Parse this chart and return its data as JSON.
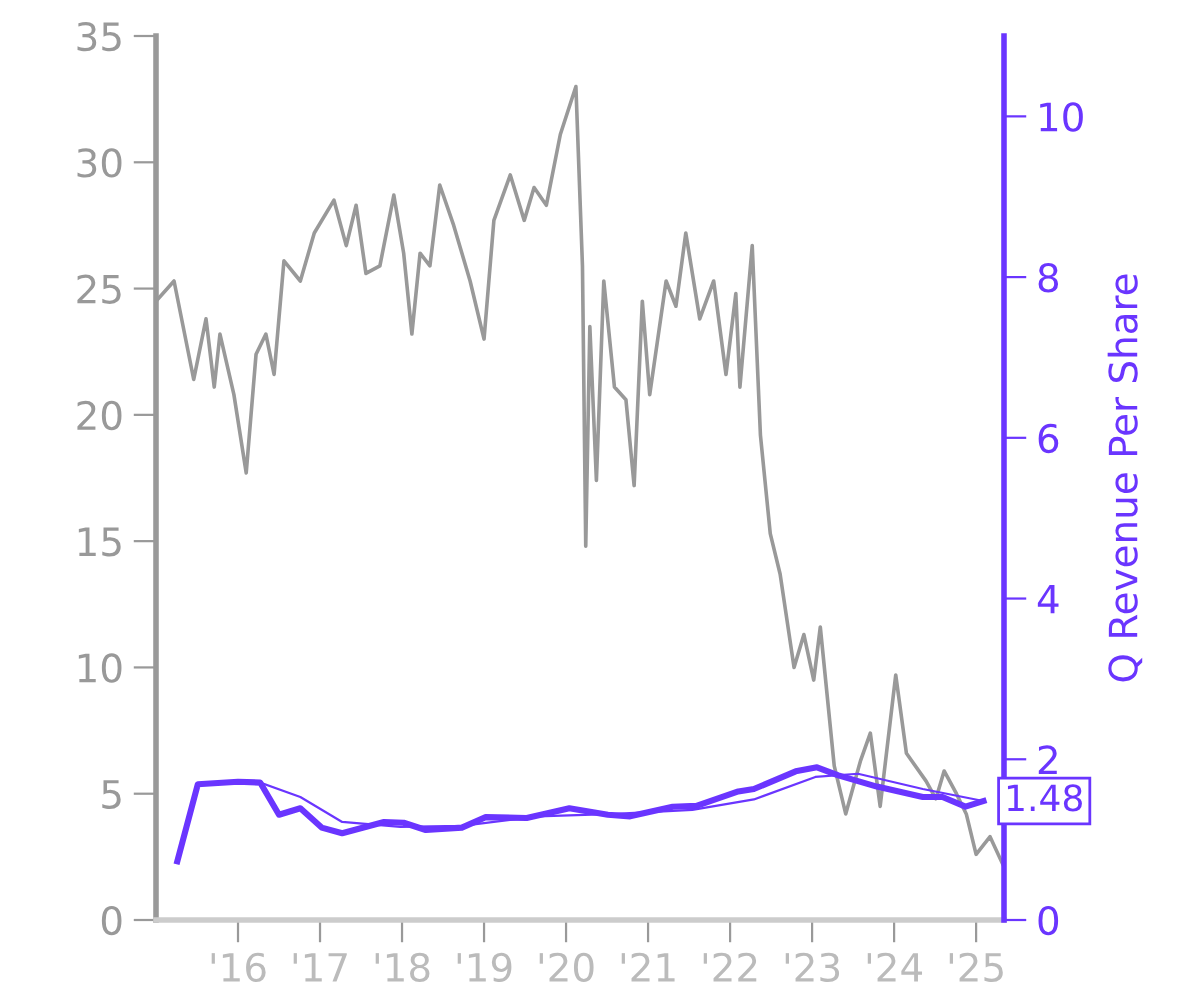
{
  "chart_data": {
    "type": "line",
    "ylabel": null,
    "y2label": "Q Revenue Per Share",
    "xlim": [
      2015.0,
      2025.34
    ],
    "xticks": [
      {
        "value": 2016,
        "label": "'16"
      },
      {
        "value": 2017,
        "label": "'17"
      },
      {
        "value": 2018,
        "label": "'18"
      },
      {
        "value": 2019,
        "label": "'19"
      },
      {
        "value": 2020,
        "label": "'20"
      },
      {
        "value": 2021,
        "label": "'21"
      },
      {
        "value": 2022,
        "label": "'22"
      },
      {
        "value": 2023,
        "label": "'23"
      },
      {
        "value": 2024,
        "label": "'24"
      },
      {
        "value": 2025,
        "label": "'25"
      }
    ],
    "ylim": [
      0,
      35
    ],
    "yticks": [
      0,
      5,
      10,
      15,
      20,
      25,
      30,
      35
    ],
    "y2lim": [
      0,
      11
    ],
    "y2ticks": [
      0,
      2,
      4,
      6,
      8,
      10
    ],
    "grid": false,
    "legend": false,
    "marker": "none",
    "line_style": "solid",
    "series": [
      {
        "color": "#999999",
        "x": [
          2015.0,
          2015.22,
          2015.46,
          2015.61,
          2015.71,
          2015.78,
          2015.95,
          2016.1,
          2016.22,
          2016.34,
          2016.44,
          2016.56,
          2016.76,
          2016.93,
          2017.17,
          2017.32,
          2017.44,
          2017.56,
          2017.73,
          2017.9,
          2018.02,
          2018.12,
          2018.22,
          2018.34,
          2018.46,
          2018.63,
          2018.83,
          2019.0,
          2019.12,
          2019.32,
          2019.49,
          2019.61,
          2019.76,
          2019.93,
          2020.12,
          2020.2,
          2020.24,
          2020.29,
          2020.37,
          2020.46,
          2020.59,
          2020.73,
          2020.83,
          2020.93,
          2021.02,
          2021.22,
          2021.34,
          2021.46,
          2021.63,
          2021.8,
          2021.95,
          2022.07,
          2022.12,
          2022.27,
          2022.37,
          2022.49,
          2022.61,
          2022.78,
          2022.9,
          2023.02,
          2023.1,
          2023.27,
          2023.41,
          2023.59,
          2023.71,
          2023.83,
          2024.02,
          2024.15,
          2024.39,
          2024.51,
          2024.61,
          2024.76,
          2024.88,
          2025.0,
          2025.17,
          2025.34
        ],
        "values": [
          24.5,
          25.3,
          21.4,
          23.8,
          21.1,
          23.2,
          20.8,
          17.7,
          22.4,
          23.2,
          21.6,
          26.1,
          25.3,
          27.2,
          28.5,
          26.7,
          28.3,
          25.6,
          25.9,
          28.7,
          26.4,
          23.2,
          26.4,
          25.9,
          29.1,
          27.5,
          25.3,
          23.0,
          27.7,
          29.5,
          27.7,
          29.0,
          28.3,
          31.1,
          33.0,
          25.9,
          14.8,
          23.5,
          17.4,
          25.3,
          21.1,
          20.6,
          17.2,
          24.5,
          20.8,
          25.3,
          24.3,
          27.2,
          23.8,
          25.3,
          21.6,
          24.8,
          21.1,
          26.7,
          19.2,
          15.3,
          13.7,
          10.0,
          11.3,
          9.5,
          11.6,
          6.1,
          4.2,
          6.3,
          7.4,
          4.5,
          9.7,
          6.6,
          5.5,
          4.8,
          5.9,
          5.0,
          4.2,
          2.6,
          3.3,
          2.1
        ]
      },
      {
        "color": "#6a35ff",
        "axis": "y2",
        "x": [
          2015.26,
          2015.51,
          2016.0,
          2016.27,
          2016.5,
          2016.76,
          2017.02,
          2017.27,
          2017.78,
          2018.02,
          2018.29,
          2018.73,
          2019.02,
          2019.52,
          2020.04,
          2020.51,
          2020.78,
          2021.3,
          2021.59,
          2022.1,
          2022.29,
          2022.8,
          2023.06,
          2023.32,
          2023.79,
          2024.35,
          2024.59,
          2024.87,
          2025.09
        ],
        "values": [
          0.73,
          1.69,
          1.72,
          1.71,
          1.31,
          1.39,
          1.15,
          1.08,
          1.22,
          1.21,
          1.12,
          1.15,
          1.28,
          1.27,
          1.39,
          1.31,
          1.29,
          1.41,
          1.42,
          1.6,
          1.63,
          1.85,
          1.9,
          1.8,
          1.66,
          1.53,
          1.53,
          1.41,
          1.48
        ],
        "value_labels": [
          null,
          null,
          null,
          null,
          null,
          null,
          null,
          null,
          null,
          null,
          null,
          null,
          null,
          null,
          null,
          null,
          null,
          null,
          null,
          null,
          null,
          null,
          null,
          null,
          null,
          null,
          null,
          null,
          "1.48"
        ]
      },
      {
        "color": "#6a35ff",
        "axis": "y2",
        "x": [
          2016.27,
          2016.76,
          2017.27,
          2017.98,
          2018.73,
          2019.66,
          2020.6,
          2021.54,
          2022.29,
          2023.04,
          2023.56,
          2024.35,
          2025.09
        ],
        "values": [
          1.71,
          1.53,
          1.22,
          1.16,
          1.17,
          1.29,
          1.32,
          1.37,
          1.5,
          1.78,
          1.82,
          1.63,
          1.48
        ]
      }
    ]
  }
}
